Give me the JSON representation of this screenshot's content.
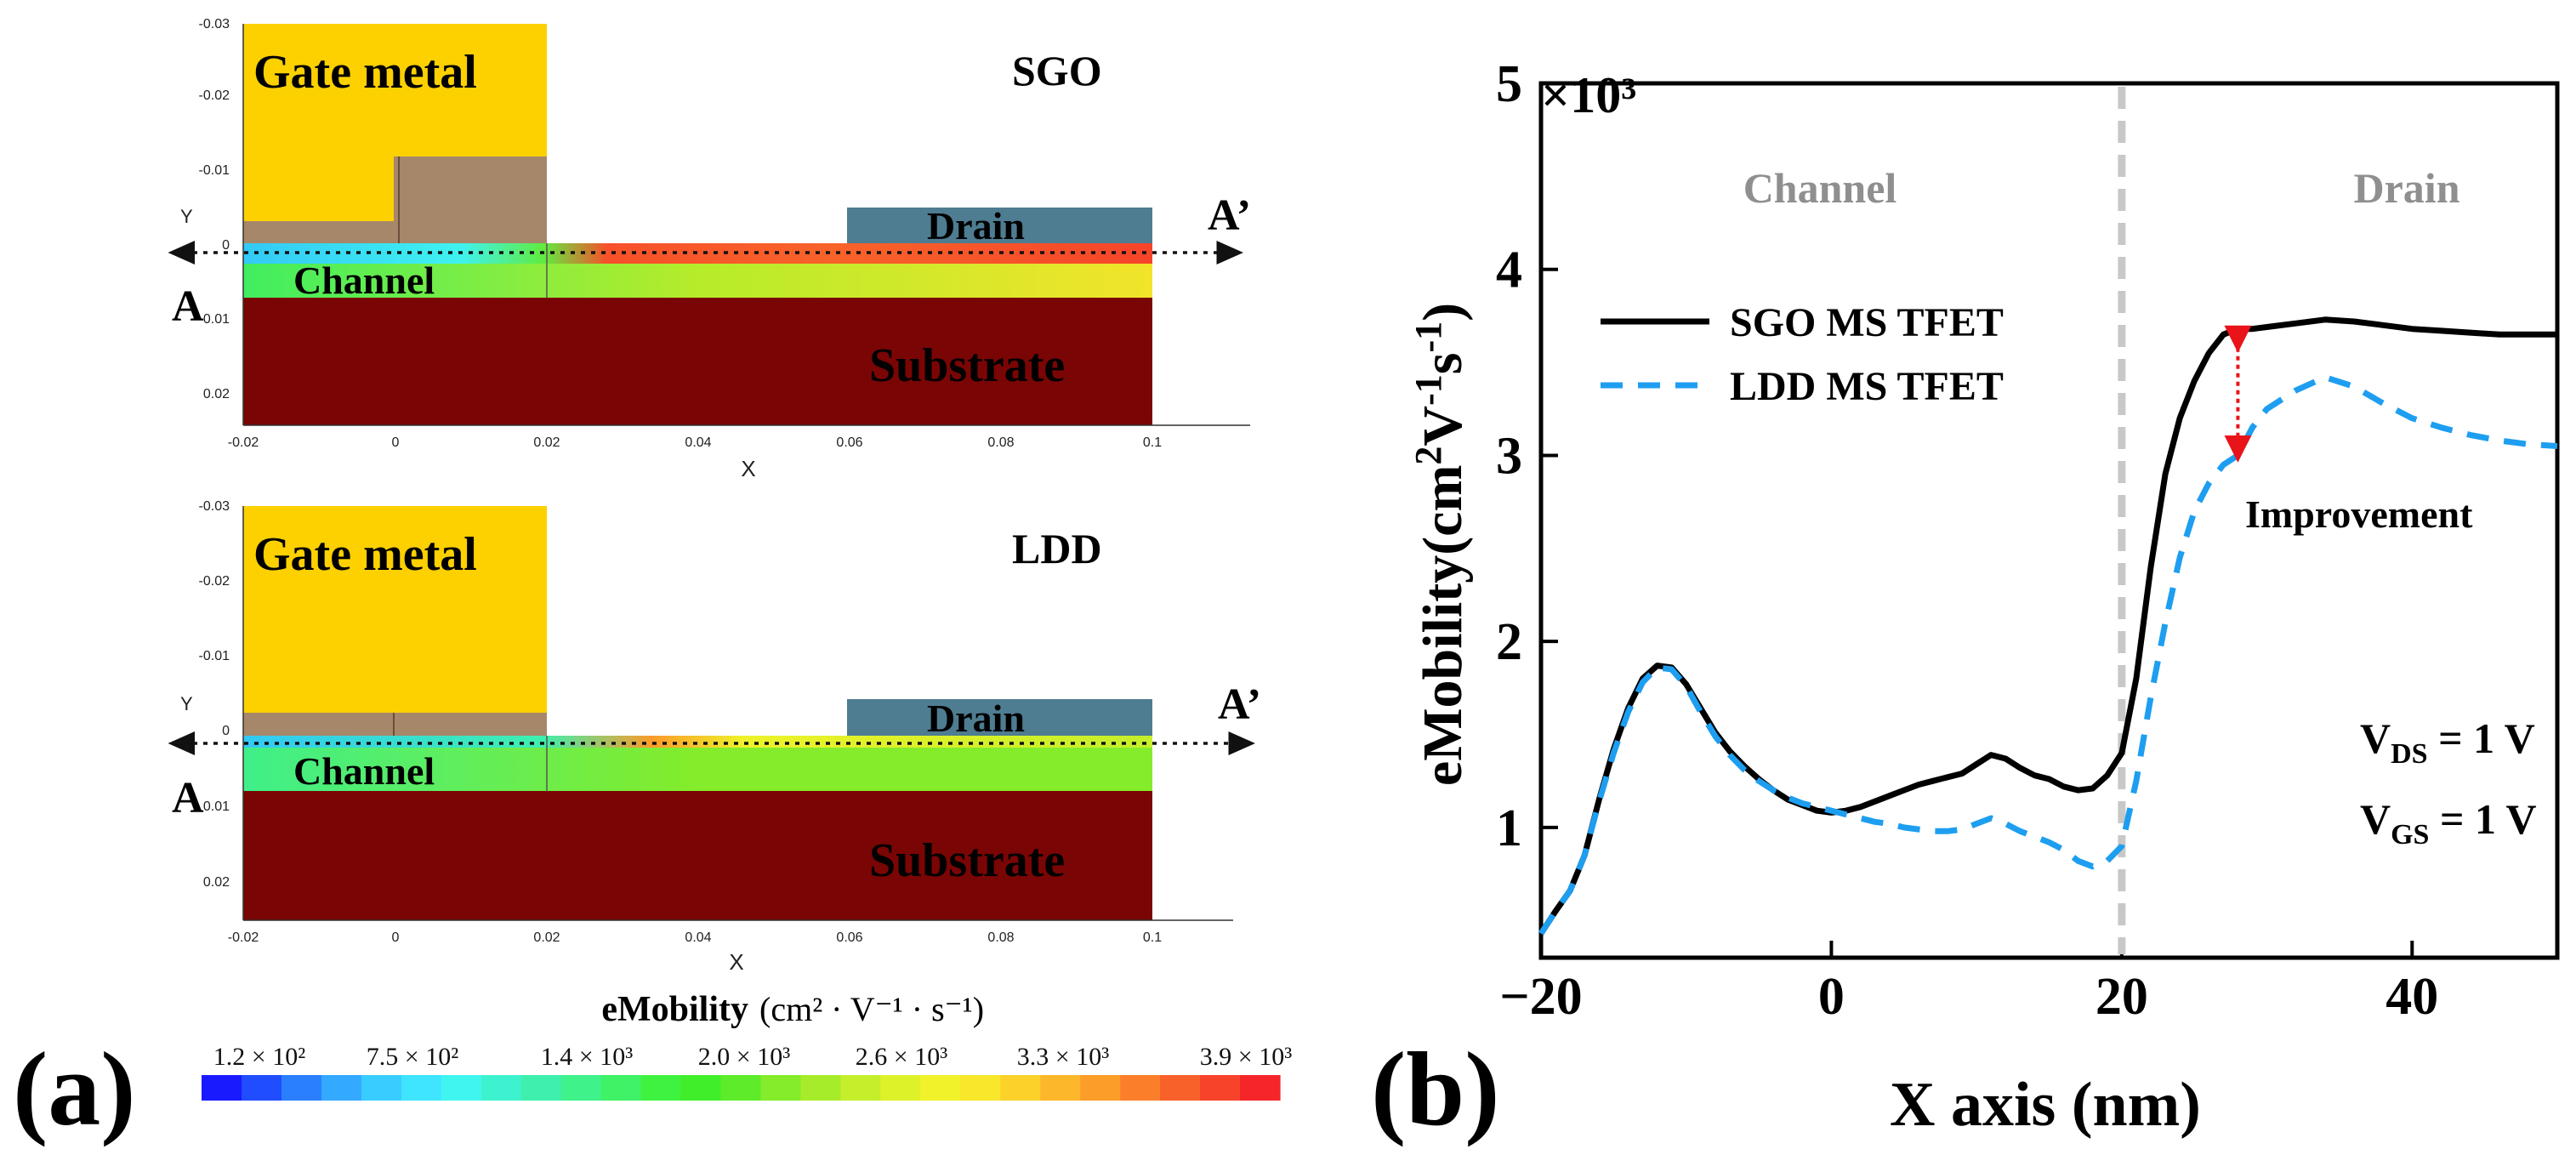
{
  "panel_a": {
    "panel_label": "(a)",
    "axis_x_label": "X",
    "axis_y_label": "Y",
    "x_ticks": [
      "-0.02",
      "0",
      "0.02",
      "0.04",
      "0.06",
      "0.08",
      "0.1"
    ],
    "y_ticks": [
      "-0.03",
      "-0.02",
      "-0.01",
      "0",
      "0.01",
      "0.02"
    ],
    "cut_start": "A",
    "cut_end": "A’",
    "devices": [
      {
        "name": "SGO",
        "gate_label": "Gate metal",
        "drain_label": "Drain",
        "channel_label": "Channel",
        "substrate_label": "Substrate"
      },
      {
        "name": "LDD",
        "gate_label": "Gate metal",
        "drain_label": "Drain",
        "channel_label": "Channel",
        "substrate_label": "Substrate"
      }
    ],
    "colorbar": {
      "title_text": "eMobility",
      "title_units": "(cm² · V⁻¹ · s⁻¹)",
      "tick_labels": [
        "1.2 × 10²",
        "7.5 × 10²",
        "1.4 × 10³",
        "2.0 × 10³",
        "2.6 × 10³",
        "3.3 × 10³",
        "3.9 × 10³"
      ],
      "colors": [
        "#1a1aff",
        "#1f4dff",
        "#2a7fff",
        "#33a9ff",
        "#39ccff",
        "#3fe4ff",
        "#40f5f0",
        "#3ff2cf",
        "#3fefae",
        "#3ff28a",
        "#3ff266",
        "#3ff23f",
        "#40ee2a",
        "#5eec2a",
        "#84ec2a",
        "#a7ec2a",
        "#c4ef2a",
        "#def22a",
        "#f2f22a",
        "#f8e72a",
        "#fbd12a",
        "#fcb72a",
        "#fc9d2a",
        "#fb7f2a",
        "#f9612a",
        "#f7432a",
        "#f5262a"
      ]
    }
  },
  "chart_data": {
    "type": "line",
    "panel_label": "(b)",
    "xlabel": "X axis (nm)",
    "ylabel_prefix": "eMobility(cm",
    "ylabel_suffix": ")",
    "y_multiplier": "×10³",
    "xlim": [
      -20,
      50
    ],
    "ylim": [
      0.3,
      5
    ],
    "x_ticks": [
      -20,
      0,
      20,
      40
    ],
    "x_tick_labels": [
      "−20",
      "0",
      "20",
      "40"
    ],
    "y_ticks": [
      1,
      2,
      3,
      4,
      5
    ],
    "y_tick_labels": [
      "1",
      "2",
      "3",
      "4",
      "5"
    ],
    "divider_x": 20,
    "region_labels": [
      "Channel",
      "Drain"
    ],
    "annotation": "Improvement",
    "arrow": {
      "x": 28,
      "y_from": 3.68,
      "y_to": 2.98
    },
    "conditions": [
      {
        "prefix": "V",
        "sub": "DS",
        "rest": " = 1 V"
      },
      {
        "prefix": "V",
        "sub": "GS",
        "rest": " = 1 V"
      }
    ],
    "series": [
      {
        "name": "SGO MS TFET",
        "color": "#000000",
        "dash": "solid",
        "x": [
          -20,
          -19,
          -18,
          -17,
          -16,
          -15,
          -14,
          -13,
          -12,
          -11,
          -10,
          -9,
          -8,
          -7,
          -6,
          -5,
          -4,
          -3,
          -2,
          -1,
          0,
          1,
          2,
          3,
          4,
          5,
          6,
          7,
          8,
          9,
          10,
          11,
          12,
          13,
          14,
          15,
          16,
          17,
          18,
          19,
          20,
          21,
          22,
          23,
          24,
          25,
          26,
          27,
          28,
          29,
          30,
          32,
          34,
          36,
          38,
          40,
          42,
          44,
          46,
          48,
          50
        ],
        "y": [
          0.43,
          0.55,
          0.66,
          0.85,
          1.15,
          1.42,
          1.64,
          1.8,
          1.87,
          1.86,
          1.77,
          1.64,
          1.51,
          1.41,
          1.33,
          1.26,
          1.2,
          1.15,
          1.12,
          1.09,
          1.08,
          1.09,
          1.11,
          1.14,
          1.17,
          1.2,
          1.23,
          1.25,
          1.27,
          1.29,
          1.34,
          1.39,
          1.37,
          1.32,
          1.28,
          1.26,
          1.22,
          1.2,
          1.21,
          1.28,
          1.4,
          1.8,
          2.4,
          2.9,
          3.2,
          3.4,
          3.55,
          3.65,
          3.68,
          3.68,
          3.69,
          3.71,
          3.73,
          3.72,
          3.7,
          3.68,
          3.67,
          3.66,
          3.65,
          3.65,
          3.65
        ]
      },
      {
        "name": "LDD MS TFET",
        "color": "#1e9ef0",
        "dash": "dashed",
        "x": [
          -20,
          -19,
          -18,
          -17,
          -16,
          -15,
          -14,
          -13,
          -12,
          -11,
          -10,
          -9,
          -8,
          -7,
          -6,
          -5,
          -4,
          -3,
          -2,
          -1,
          0,
          1,
          2,
          3,
          4,
          5,
          6,
          7,
          8,
          9,
          10,
          11,
          12,
          13,
          14,
          15,
          16,
          17,
          18,
          19,
          20,
          21,
          22,
          23,
          24,
          25,
          26,
          27,
          28,
          29,
          30,
          32,
          34,
          36,
          38,
          40,
          42,
          44,
          46,
          48,
          50
        ],
        "y": [
          0.43,
          0.55,
          0.66,
          0.85,
          1.14,
          1.4,
          1.62,
          1.78,
          1.86,
          1.85,
          1.76,
          1.62,
          1.49,
          1.39,
          1.31,
          1.25,
          1.2,
          1.16,
          1.13,
          1.11,
          1.09,
          1.07,
          1.05,
          1.03,
          1.02,
          1.0,
          0.99,
          0.98,
          0.98,
          0.99,
          1.02,
          1.05,
          1.02,
          0.98,
          0.95,
          0.92,
          0.88,
          0.82,
          0.79,
          0.82,
          0.9,
          1.25,
          1.7,
          2.1,
          2.45,
          2.7,
          2.85,
          2.95,
          3.0,
          3.15,
          3.25,
          3.35,
          3.42,
          3.37,
          3.28,
          3.2,
          3.15,
          3.11,
          3.08,
          3.06,
          3.05
        ]
      }
    ]
  }
}
